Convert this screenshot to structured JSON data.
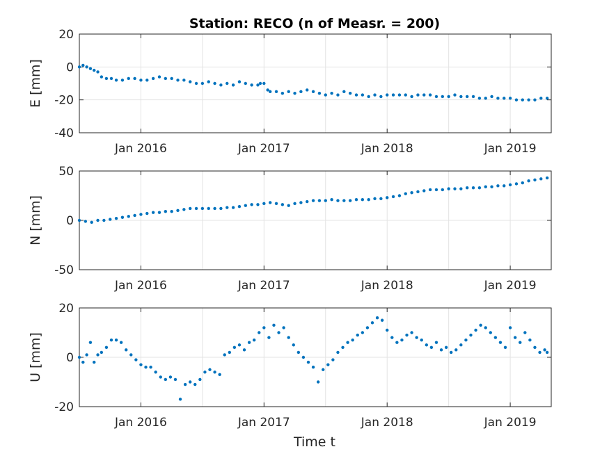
{
  "chart_data": {
    "type": "scatter",
    "title": "Station: RECO (n of Measr. = 200)",
    "xlabel": "Time t",
    "x_tick_labels": [
      "Jan 2016",
      "Jan 2017",
      "Jan 2018",
      "Jan 2019"
    ],
    "xlim": [
      "2015-07-01",
      "2019-05-01"
    ],
    "grid": true,
    "marker_color": "#0072BD",
    "panels": [
      {
        "ylabel": "E [mm]",
        "ylim": [
          -40,
          20
        ],
        "yticks": [
          -40,
          -20,
          0,
          20
        ],
        "x": [
          2015.5,
          2015.53,
          2015.56,
          2015.59,
          2015.62,
          2015.65,
          2015.68,
          2015.72,
          2015.76,
          2015.8,
          2015.85,
          2015.9,
          2015.95,
          2016.0,
          2016.05,
          2016.1,
          2016.15,
          2016.2,
          2016.25,
          2016.3,
          2016.35,
          2016.4,
          2016.45,
          2016.5,
          2016.55,
          2016.6,
          2016.65,
          2016.7,
          2016.75,
          2016.8,
          2016.85,
          2016.9,
          2016.95,
          2016.97,
          2017.0,
          2017.03,
          2017.05,
          2017.1,
          2017.15,
          2017.2,
          2017.25,
          2017.3,
          2017.35,
          2017.4,
          2017.45,
          2017.5,
          2017.55,
          2017.6,
          2017.65,
          2017.7,
          2017.75,
          2017.8,
          2017.85,
          2017.9,
          2017.95,
          2018.0,
          2018.05,
          2018.1,
          2018.15,
          2018.2,
          2018.25,
          2018.3,
          2018.35,
          2018.4,
          2018.45,
          2018.5,
          2018.55,
          2018.6,
          2018.65,
          2018.7,
          2018.75,
          2018.8,
          2018.85,
          2018.9,
          2018.95,
          2019.0,
          2019.05,
          2019.1,
          2019.15,
          2019.2,
          2019.25,
          2019.3
        ],
        "y": [
          0,
          1,
          0,
          -1,
          -2,
          -3,
          -6,
          -7,
          -7,
          -8,
          -8,
          -7,
          -7,
          -8,
          -8,
          -7,
          -6,
          -7,
          -7,
          -8,
          -8,
          -9,
          -10,
          -10,
          -9,
          -10,
          -11,
          -10,
          -11,
          -9,
          -10,
          -11,
          -11,
          -10,
          -10,
          -14,
          -15,
          -15,
          -16,
          -15,
          -16,
          -15,
          -14,
          -15,
          -16,
          -17,
          -16,
          -17,
          -15,
          -16,
          -17,
          -17,
          -18,
          -17,
          -18,
          -17,
          -17,
          -17,
          -17,
          -18,
          -17,
          -17,
          -17,
          -18,
          -18,
          -18,
          -17,
          -18,
          -18,
          -18,
          -19,
          -19,
          -18,
          -19,
          -19,
          -19,
          -20,
          -20,
          -20,
          -20,
          -19,
          -19
        ]
      },
      {
        "ylabel": "N [mm]",
        "ylim": [
          -50,
          50
        ],
        "yticks": [
          -50,
          0,
          50
        ],
        "x": [
          2015.5,
          2015.55,
          2015.6,
          2015.65,
          2015.7,
          2015.75,
          2015.8,
          2015.85,
          2015.9,
          2015.95,
          2016.0,
          2016.05,
          2016.1,
          2016.15,
          2016.2,
          2016.25,
          2016.3,
          2016.35,
          2016.4,
          2016.45,
          2016.5,
          2016.55,
          2016.6,
          2016.65,
          2016.7,
          2016.75,
          2016.8,
          2016.85,
          2016.9,
          2016.95,
          2017.0,
          2017.05,
          2017.1,
          2017.15,
          2017.2,
          2017.25,
          2017.3,
          2017.35,
          2017.4,
          2017.45,
          2017.5,
          2017.55,
          2017.6,
          2017.65,
          2017.7,
          2017.75,
          2017.8,
          2017.85,
          2017.9,
          2017.95,
          2018.0,
          2018.05,
          2018.1,
          2018.15,
          2018.2,
          2018.25,
          2018.3,
          2018.35,
          2018.4,
          2018.45,
          2018.5,
          2018.55,
          2018.6,
          2018.65,
          2018.7,
          2018.75,
          2018.8,
          2018.85,
          2018.9,
          2018.95,
          2019.0,
          2019.05,
          2019.1,
          2019.15,
          2019.2,
          2019.25,
          2019.3
        ],
        "y": [
          0,
          -1,
          -2,
          0,
          0,
          1,
          2,
          3,
          4,
          5,
          6,
          7,
          8,
          8,
          9,
          9,
          10,
          11,
          12,
          12,
          12,
          12,
          12,
          12,
          13,
          13,
          14,
          15,
          16,
          16,
          17,
          18,
          17,
          16,
          15,
          17,
          18,
          19,
          20,
          20,
          20,
          21,
          20,
          20,
          20,
          21,
          21,
          21,
          22,
          22,
          23,
          24,
          25,
          27,
          28,
          29,
          30,
          31,
          31,
          31,
          32,
          32,
          32,
          33,
          33,
          33,
          34,
          34,
          35,
          35,
          36,
          37,
          38,
          40,
          41,
          42,
          43
        ]
      },
      {
        "ylabel": "U [mm]",
        "ylim": [
          -20,
          20
        ],
        "yticks": [
          -20,
          0,
          20
        ],
        "x": [
          2015.5,
          2015.53,
          2015.56,
          2015.59,
          2015.62,
          2015.65,
          2015.68,
          2015.72,
          2015.76,
          2015.8,
          2015.84,
          2015.88,
          2015.92,
          2015.96,
          2016.0,
          2016.04,
          2016.08,
          2016.12,
          2016.16,
          2016.2,
          2016.24,
          2016.28,
          2016.32,
          2016.36,
          2016.4,
          2016.44,
          2016.48,
          2016.52,
          2016.56,
          2016.6,
          2016.64,
          2016.68,
          2016.72,
          2016.76,
          2016.8,
          2016.84,
          2016.88,
          2016.92,
          2016.96,
          2017.0,
          2017.04,
          2017.08,
          2017.12,
          2017.16,
          2017.2,
          2017.24,
          2017.28,
          2017.32,
          2017.36,
          2017.4,
          2017.44,
          2017.48,
          2017.52,
          2017.56,
          2017.6,
          2017.64,
          2017.68,
          2017.72,
          2017.76,
          2017.8,
          2017.84,
          2017.88,
          2017.92,
          2017.96,
          2018.0,
          2018.04,
          2018.08,
          2018.12,
          2018.16,
          2018.2,
          2018.24,
          2018.28,
          2018.32,
          2018.36,
          2018.4,
          2018.44,
          2018.48,
          2018.52,
          2018.56,
          2018.6,
          2018.64,
          2018.68,
          2018.72,
          2018.76,
          2018.8,
          2018.84,
          2018.88,
          2018.92,
          2018.96,
          2019.0,
          2019.04,
          2019.08,
          2019.12,
          2019.16,
          2019.2,
          2019.24,
          2019.28,
          2019.3
        ],
        "y": [
          0,
          -2,
          1,
          6,
          -2,
          1,
          2,
          4,
          7,
          7,
          6,
          3,
          1,
          -1,
          -3,
          -4,
          -4,
          -6,
          -8,
          -9,
          -8,
          -9,
          -17,
          -11,
          -10,
          -11,
          -9,
          -6,
          -5,
          -6,
          -7,
          1,
          2,
          4,
          5,
          3,
          6,
          7,
          10,
          12,
          8,
          13,
          10,
          12,
          8,
          5,
          2,
          0,
          -2,
          -4,
          -10,
          -5,
          -3,
          -1,
          2,
          4,
          6,
          7,
          9,
          10,
          12,
          14,
          16,
          15,
          11,
          8,
          6,
          7,
          9,
          10,
          8,
          7,
          5,
          4,
          6,
          3,
          4,
          2,
          3,
          5,
          7,
          9,
          11,
          13,
          12,
          10,
          8,
          6,
          4,
          12,
          8,
          6,
          10,
          7,
          4,
          2,
          3,
          2
        ]
      }
    ]
  }
}
